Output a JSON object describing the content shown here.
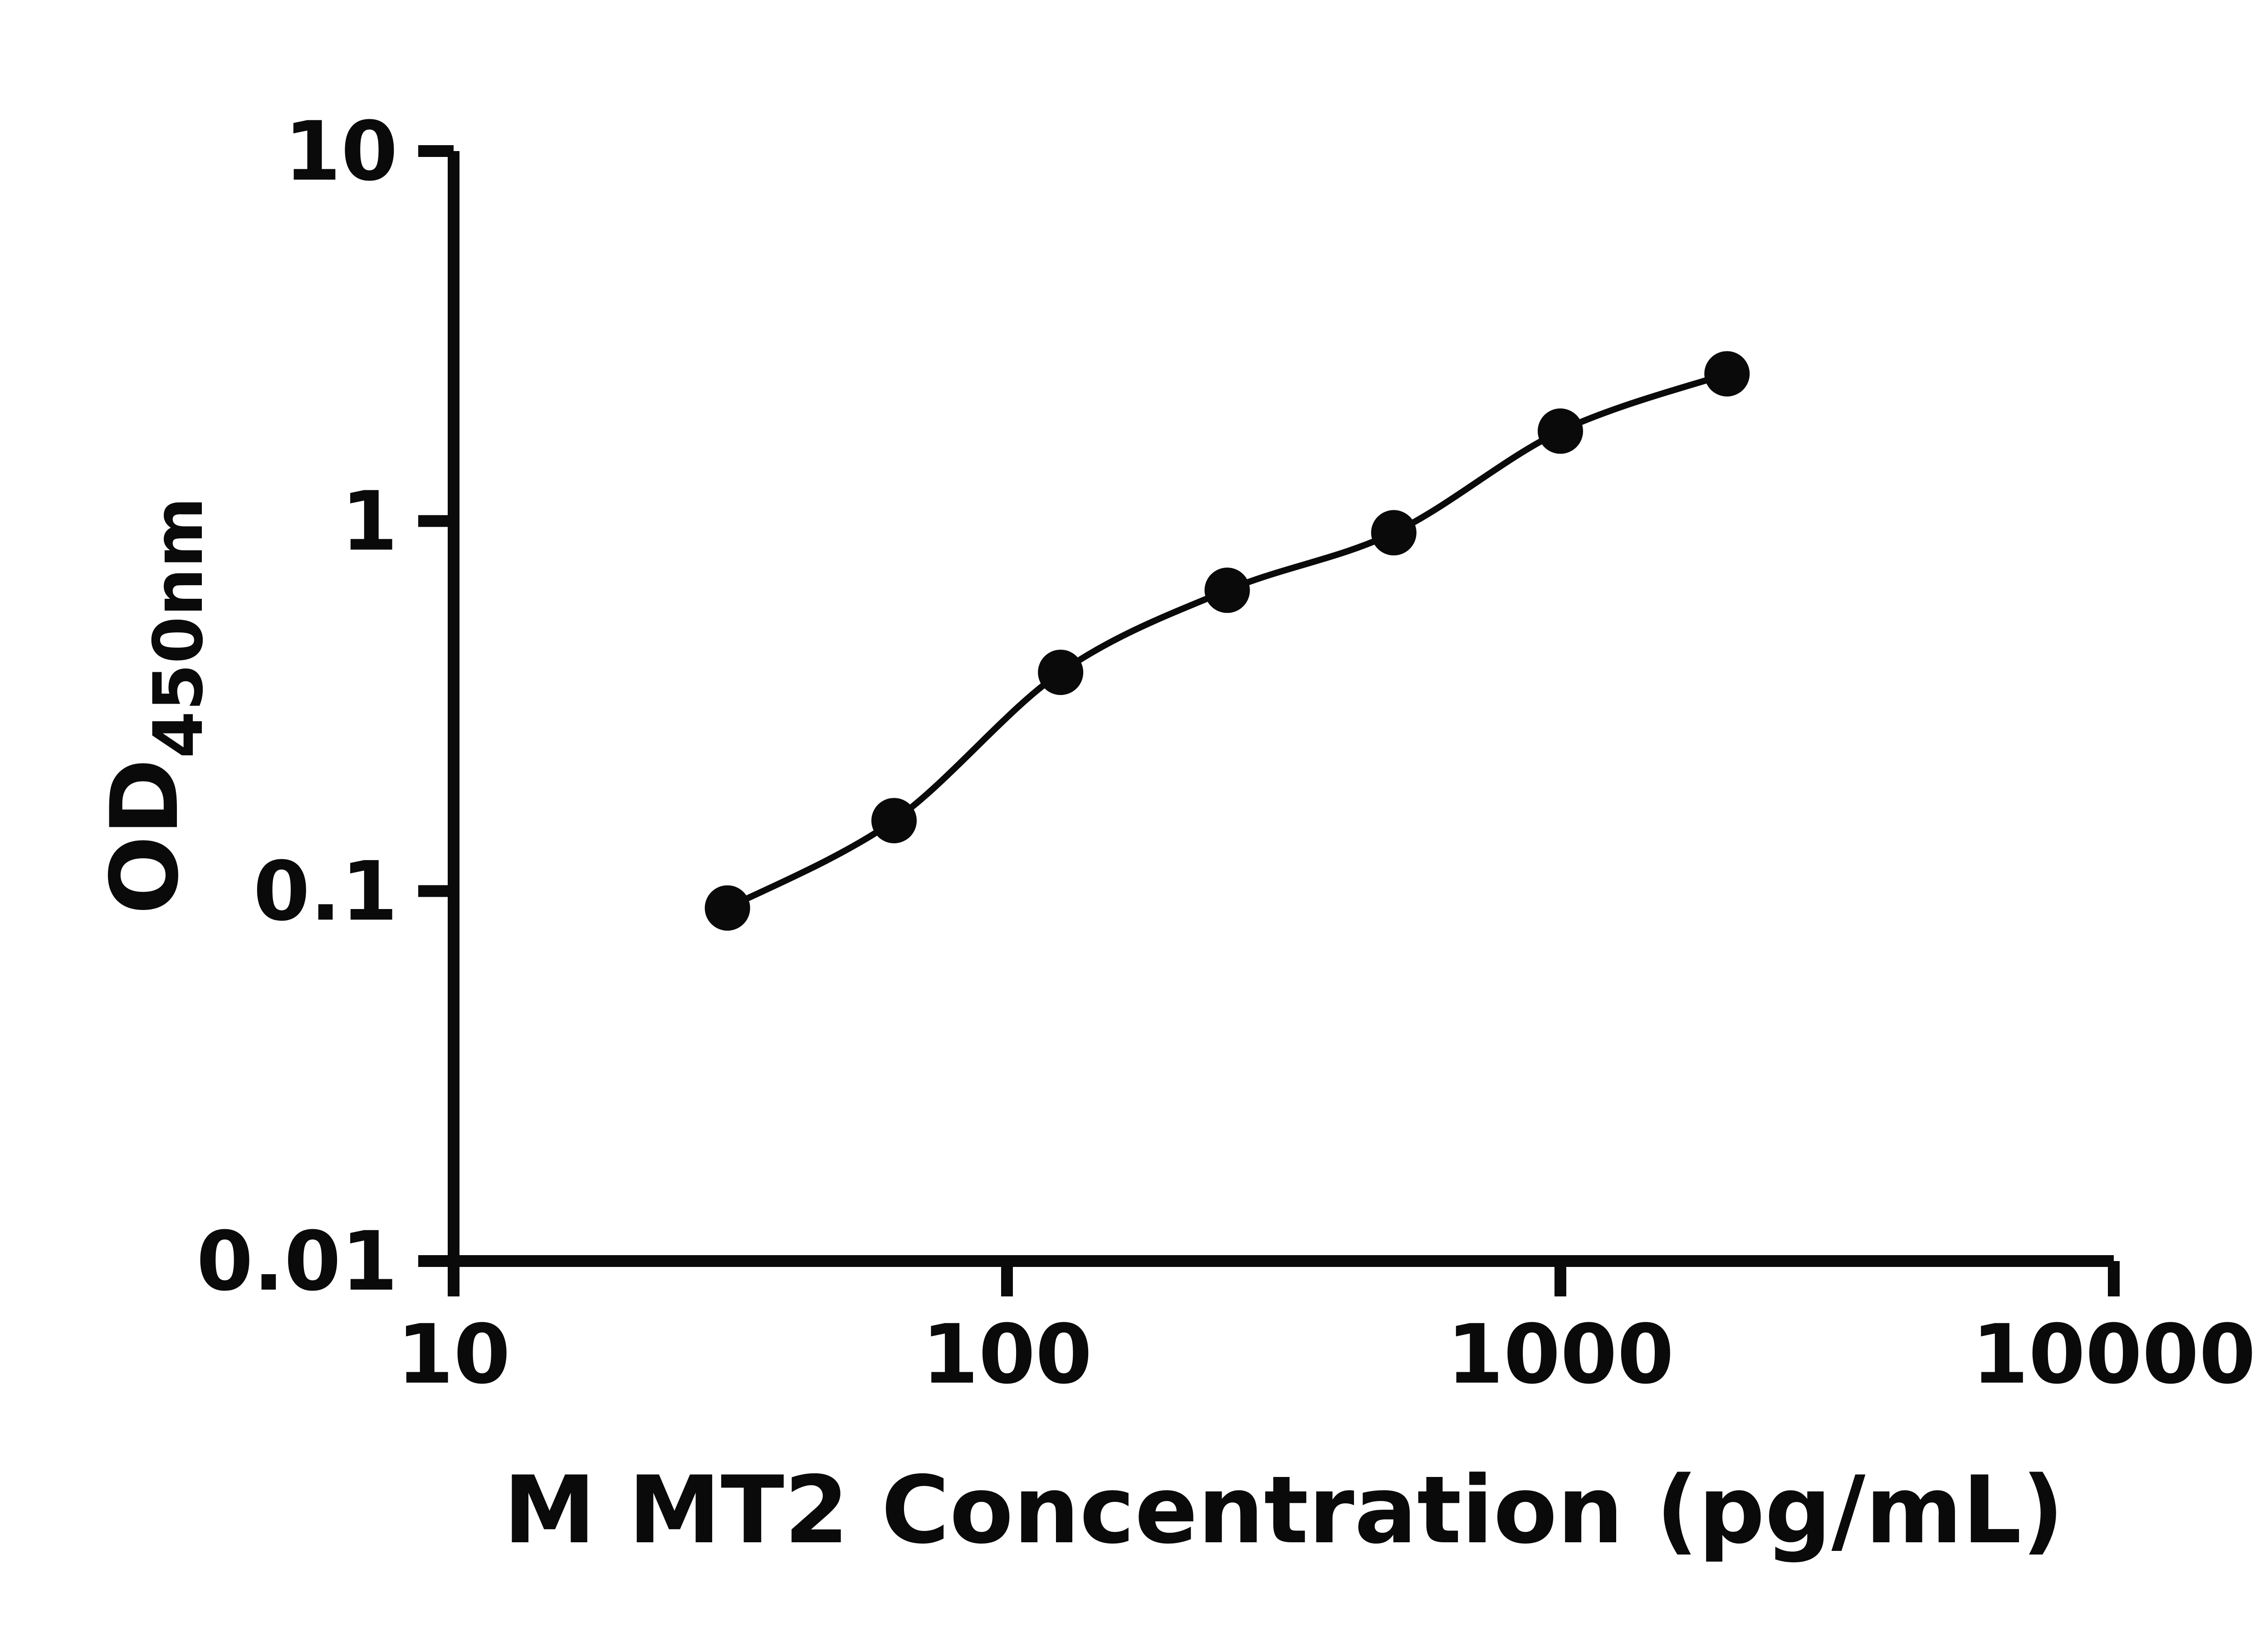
{
  "chart_data": {
    "type": "scatter",
    "xlabel": "M MT2 Concentration (pg/mL)",
    "ylabel_main": "OD",
    "ylabel_sub": "450nm",
    "xscale": "log",
    "yscale": "log",
    "xlim": [
      10,
      10000
    ],
    "ylim": [
      0.01,
      10
    ],
    "x_ticks": [
      {
        "value": 10,
        "label": "10"
      },
      {
        "value": 100,
        "label": "100"
      },
      {
        "value": 1000,
        "label": "1000"
      },
      {
        "value": 10000,
        "label": "10000"
      }
    ],
    "y_ticks": [
      {
        "value": 0.01,
        "label": "0.01"
      },
      {
        "value": 0.1,
        "label": "0.1"
      },
      {
        "value": 1,
        "label": "1"
      },
      {
        "value": 10,
        "label": "10"
      }
    ],
    "grid": false,
    "legend": "none",
    "series": [
      {
        "x": [
          31.25,
          62.5,
          125,
          250,
          500,
          1000,
          2000
        ],
        "y": [
          0.09,
          0.155,
          0.39,
          0.65,
          0.93,
          1.75,
          2.5
        ],
        "marker": "filled-circle",
        "marker_color": "#0a0a0a",
        "line_style": "smooth",
        "line_color": "#0a0a0a"
      }
    ],
    "axis_color": "#0a0a0a",
    "background_color": "#ffffff"
  }
}
